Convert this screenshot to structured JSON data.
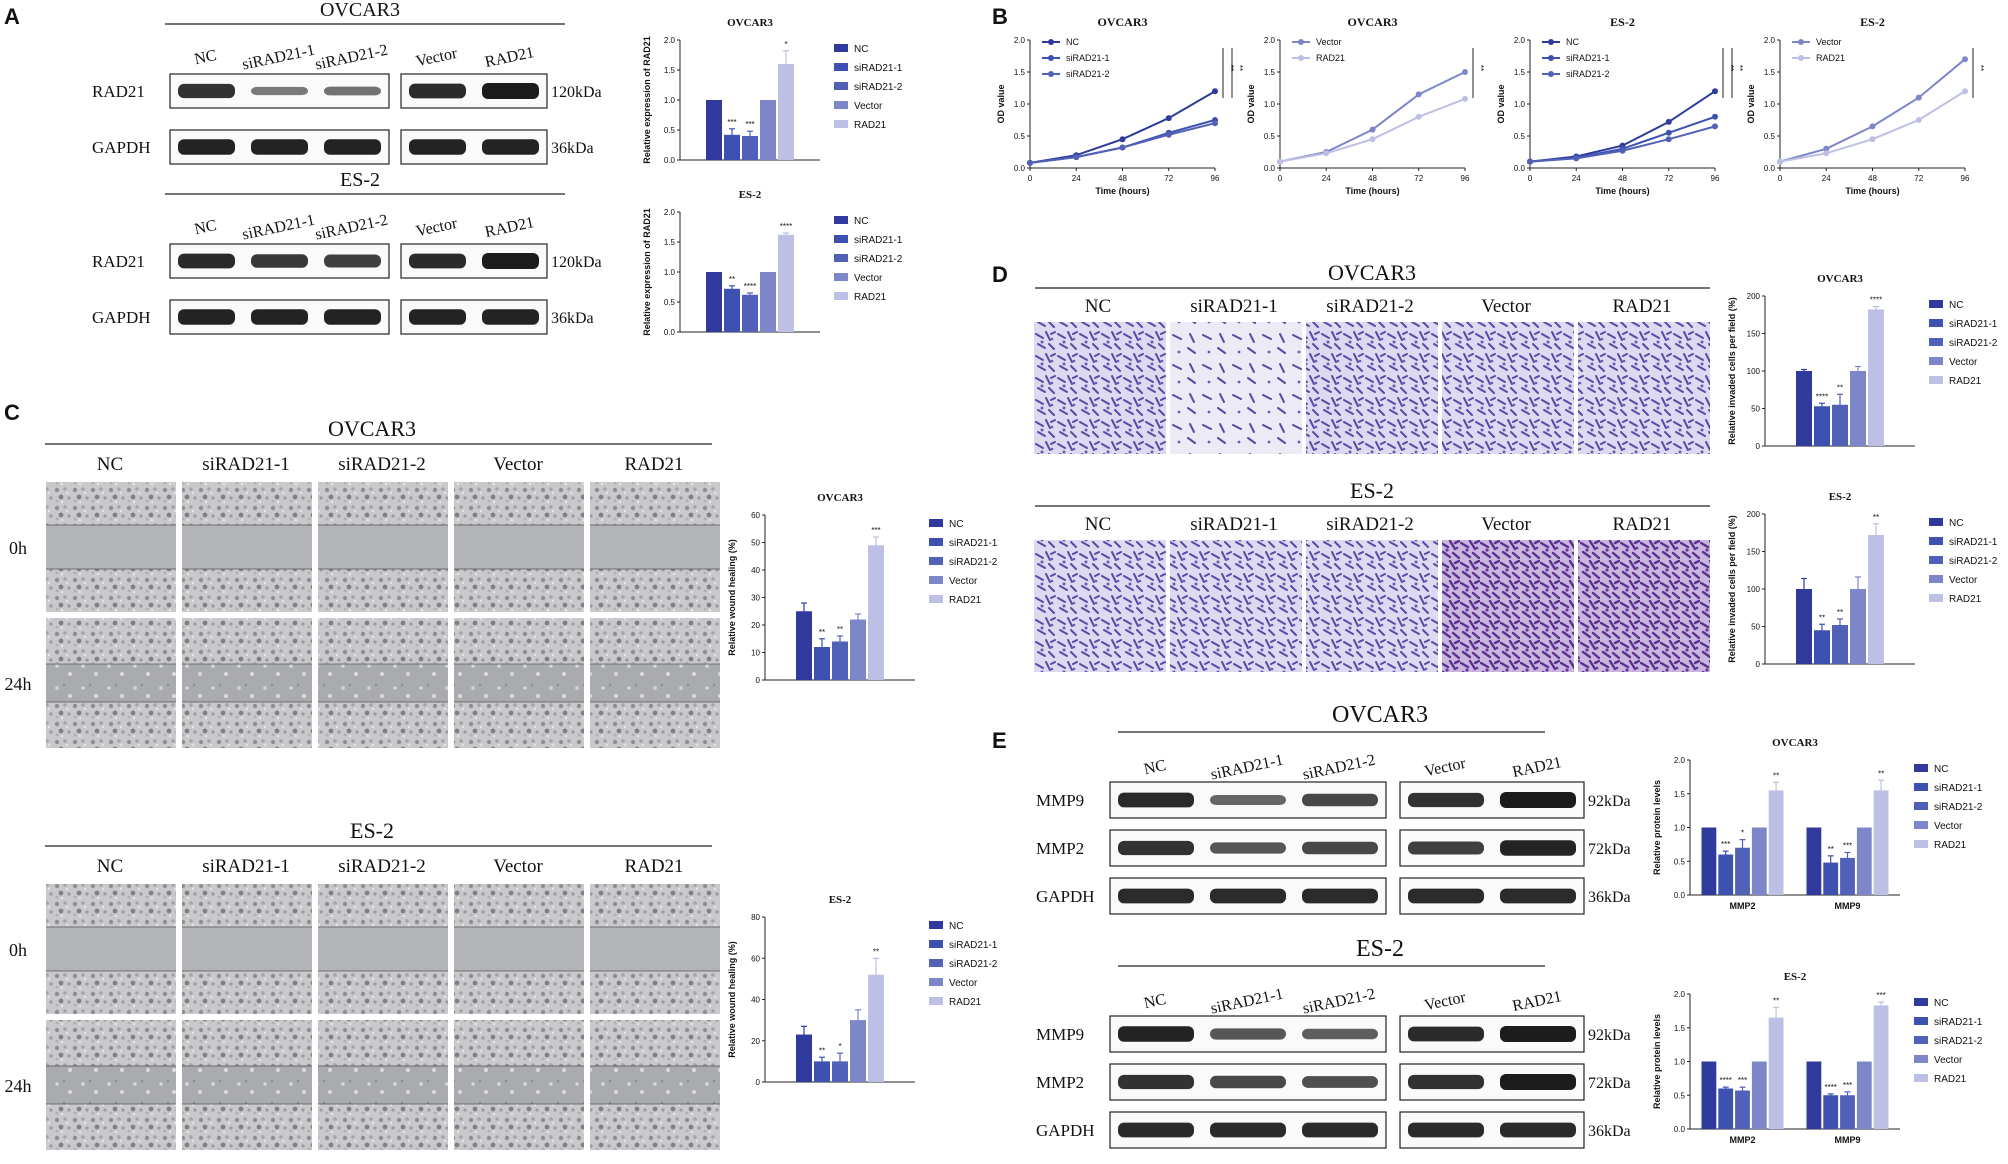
{
  "colors": {
    "c1": "#2f3a9c",
    "c2": "#3d52b0",
    "c3": "#5261b8",
    "c4": "#7d86c9",
    "c5": "#bdbfe4",
    "band": "#1c1c1c"
  },
  "panelA": {
    "letter": "A",
    "blots": [
      {
        "cell": "OVCAR3",
        "lanes": [
          "NC",
          "siRAD21-1",
          "siRAD21-2",
          "Vector",
          "RAD21"
        ],
        "rows": [
          {
            "label": "RAD21",
            "kda": "120kDa",
            "int": [
              0.85,
              0.35,
              0.4,
              0.9,
              1.0
            ]
          },
          {
            "label": "GAPDH",
            "kda": "36kDa",
            "int": [
              0.95,
              0.95,
              0.95,
              0.95,
              0.95
            ]
          }
        ]
      },
      {
        "cell": "ES-2",
        "lanes": [
          "NC",
          "siRAD21-1",
          "siRAD21-2",
          "Vector",
          "RAD21"
        ],
        "rows": [
          {
            "label": "RAD21",
            "kda": "120kDa",
            "int": [
              0.9,
              0.8,
              0.75,
              0.9,
              1.0
            ]
          },
          {
            "label": "GAPDH",
            "kda": "36kDa",
            "int": [
              0.95,
              0.95,
              0.95,
              0.95,
              0.95
            ]
          }
        ]
      }
    ],
    "charts": [
      {
        "title": "OVCAR3",
        "ylabel": "Relative expression of RAD21",
        "ymax": 2.0,
        "ticks": [
          0.0,
          0.5,
          1.0,
          1.5,
          2.0
        ],
        "values": [
          1.0,
          0.42,
          0.4,
          1.0,
          1.6
        ],
        "errors": [
          0,
          0.1,
          0.08,
          0,
          0.22
        ],
        "sig": [
          "",
          "***",
          "***",
          "",
          "*"
        ],
        "legend": [
          "NC",
          "siRAD21-1",
          "siRAD21-2",
          "Vector",
          "RAD21"
        ]
      },
      {
        "title": "ES-2",
        "ylabel": "Relative expression of RAD21",
        "ymax": 2.0,
        "ticks": [
          0.0,
          0.5,
          1.0,
          1.5,
          2.0
        ],
        "values": [
          1.0,
          0.72,
          0.62,
          1.0,
          1.62
        ],
        "errors": [
          0,
          0.05,
          0.03,
          0,
          0.03
        ],
        "sig": [
          "",
          "**",
          "****",
          "",
          "****"
        ],
        "legend": [
          "NC",
          "siRAD21-1",
          "siRAD21-2",
          "Vector",
          "RAD21"
        ]
      }
    ]
  },
  "panelB": {
    "letter": "B",
    "xlabel": "Time (hours)",
    "ylabel": "OD value",
    "x": [
      0,
      24,
      48,
      72,
      96
    ],
    "yticks": [
      0.0,
      0.5,
      1.0,
      1.5,
      2.0
    ],
    "charts": [
      {
        "title": "OVCAR3",
        "sig": [
          "**",
          "**"
        ],
        "series": [
          {
            "name": "NC",
            "y": [
              0.08,
              0.2,
              0.45,
              0.78,
              1.2
            ],
            "ci": 0
          },
          {
            "name": "siRAD21-1",
            "y": [
              0.08,
              0.17,
              0.32,
              0.55,
              0.75
            ],
            "ci": 1
          },
          {
            "name": "siRAD21-2",
            "y": [
              0.08,
              0.17,
              0.32,
              0.52,
              0.7
            ],
            "ci": 2
          }
        ]
      },
      {
        "title": "OVCAR3",
        "sig": [
          "**"
        ],
        "series": [
          {
            "name": "Vector",
            "y": [
              0.1,
              0.25,
              0.6,
              1.15,
              1.5
            ],
            "ci": 3
          },
          {
            "name": "RAD21",
            "y": [
              0.1,
              0.23,
              0.45,
              0.8,
              1.08
            ],
            "ci": 4
          }
        ]
      },
      {
        "title": "ES-2",
        "sig": [
          "**",
          "**"
        ],
        "series": [
          {
            "name": "NC",
            "y": [
              0.1,
              0.18,
              0.35,
              0.72,
              1.2
            ],
            "ci": 0
          },
          {
            "name": "siRAD21-1",
            "y": [
              0.1,
              0.16,
              0.3,
              0.55,
              0.8
            ],
            "ci": 1
          },
          {
            "name": "siRAD21-2",
            "y": [
              0.1,
              0.15,
              0.27,
              0.45,
              0.65
            ],
            "ci": 2
          }
        ]
      },
      {
        "title": "ES-2",
        "sig": [
          "**"
        ],
        "series": [
          {
            "name": "Vector",
            "y": [
              0.1,
              0.3,
              0.65,
              1.1,
              1.7
            ],
            "ci": 3
          },
          {
            "name": "RAD21",
            "y": [
              0.1,
              0.23,
              0.45,
              0.75,
              1.2
            ],
            "ci": 4
          }
        ]
      }
    ]
  },
  "panelC": {
    "letter": "C",
    "lanes": [
      "NC",
      "siRAD21-1",
      "siRAD21-2",
      "Vector",
      "RAD21"
    ],
    "times": [
      "0h",
      "24h"
    ],
    "groups": [
      {
        "cell": "OVCAR3",
        "chart": {
          "title": "OVCAR3",
          "ylabel": "Relative wound healing (%)",
          "ymax": 60,
          "ticks": [
            0,
            10,
            20,
            30,
            40,
            50,
            60
          ],
          "values": [
            25,
            12,
            14,
            22,
            49
          ],
          "errors": [
            3,
            3,
            2,
            2,
            3
          ],
          "sig": [
            "",
            "**",
            "**",
            "",
            "***"
          ],
          "legend": [
            "NC",
            "siRAD21-1",
            "siRAD21-2",
            "Vector",
            "RAD21"
          ]
        }
      },
      {
        "cell": "ES-2",
        "chart": {
          "title": "ES-2",
          "ylabel": "Relative wound healing (%)",
          "ymax": 80,
          "ticks": [
            0,
            20,
            40,
            60,
            80
          ],
          "values": [
            23,
            10,
            10,
            30,
            52
          ],
          "errors": [
            4,
            2,
            4,
            5,
            8
          ],
          "sig": [
            "",
            "**",
            "*",
            "",
            "**"
          ],
          "legend": [
            "NC",
            "siRAD21-1",
            "siRAD21-2",
            "Vector",
            "RAD21"
          ]
        }
      }
    ]
  },
  "panelD": {
    "letter": "D",
    "lanes": [
      "NC",
      "siRAD21-1",
      "siRAD21-2",
      "Vector",
      "RAD21"
    ],
    "groups": [
      {
        "cell": "OVCAR3",
        "chart": {
          "title": "OVCAR3",
          "ylabel": "Relative invaded cells per field (%)",
          "ymax": 200,
          "ticks": [
            0,
            50,
            100,
            150,
            200
          ],
          "values": [
            100,
            53,
            55,
            100,
            182
          ],
          "errors": [
            2,
            4,
            14,
            6,
            4
          ],
          "sig": [
            "",
            "****",
            "**",
            "",
            "****"
          ],
          "legend": [
            "NC",
            "siRAD21-1",
            "siRAD21-2",
            "Vector",
            "RAD21"
          ]
        }
      },
      {
        "cell": "ES-2",
        "chart": {
          "title": "ES-2",
          "ylabel": "Relative invaded cells per field (%)",
          "ymax": 200,
          "ticks": [
            0,
            50,
            100,
            150,
            200
          ],
          "values": [
            100,
            45,
            52,
            100,
            172
          ],
          "errors": [
            14,
            8,
            8,
            16,
            15
          ],
          "sig": [
            "",
            "**",
            "**",
            "",
            "**"
          ],
          "legend": [
            "NC",
            "siRAD21-1",
            "siRAD21-2",
            "Vector",
            "RAD21"
          ]
        }
      }
    ]
  },
  "panelE": {
    "letter": "E",
    "blots": [
      {
        "cell": "OVCAR3",
        "lanes": [
          "NC",
          "siRAD21-1",
          "siRAD21-2",
          "Vector",
          "RAD21"
        ],
        "rows": [
          {
            "label": "MMP9",
            "kda": "92kDa",
            "int": [
              0.9,
              0.5,
              0.7,
              0.85,
              1.0
            ]
          },
          {
            "label": "MMP2",
            "kda": "72kDa",
            "int": [
              0.85,
              0.6,
              0.7,
              0.75,
              0.95
            ]
          },
          {
            "label": "GAPDH",
            "kda": "36kDa",
            "int": [
              0.9,
              0.9,
              0.9,
              0.9,
              0.9
            ]
          }
        ]
      },
      {
        "cell": "ES-2",
        "lanes": [
          "NC",
          "siRAD21-1",
          "siRAD21-2",
          "Vector",
          "RAD21"
        ],
        "rows": [
          {
            "label": "MMP9",
            "kda": "92kDa",
            "int": [
              0.95,
              0.6,
              0.55,
              0.9,
              1.0
            ]
          },
          {
            "label": "MMP2",
            "kda": "72kDa",
            "int": [
              0.85,
              0.7,
              0.65,
              0.85,
              1.0
            ]
          },
          {
            "label": "GAPDH",
            "kda": "36kDa",
            "int": [
              0.9,
              0.9,
              0.9,
              0.9,
              0.9
            ]
          }
        ]
      }
    ],
    "charts": [
      {
        "title": "OVCAR3",
        "ylabel": "Relative protein levels",
        "ymax": 2.0,
        "ticks": [
          0.0,
          0.5,
          1.0,
          1.5,
          2.0
        ],
        "categories": [
          "MMP2",
          "MMP9"
        ],
        "values": [
          [
            1.0,
            0.6,
            0.7,
            1.0,
            1.55
          ],
          [
            1.0,
            0.48,
            0.55,
            1.0,
            1.55
          ]
        ],
        "errors": [
          [
            0,
            0.05,
            0.12,
            0,
            0.12
          ],
          [
            0,
            0.1,
            0.08,
            0,
            0.15
          ]
        ],
        "sig": [
          [
            "",
            "***",
            "*",
            "",
            "**"
          ],
          [
            "",
            "**",
            "***",
            "",
            "**"
          ]
        ],
        "legend": [
          "NC",
          "siRAD21-1",
          "siRAD21-2",
          "Vector",
          "RAD21"
        ]
      },
      {
        "title": "ES-2",
        "ylabel": "Relative protein levels",
        "ymax": 2.0,
        "ticks": [
          0.0,
          0.5,
          1.0,
          1.5,
          2.0
        ],
        "categories": [
          "MMP2",
          "MMP9"
        ],
        "values": [
          [
            1.0,
            0.6,
            0.57,
            1.0,
            1.65
          ],
          [
            1.0,
            0.5,
            0.5,
            1.0,
            1.83
          ]
        ],
        "errors": [
          [
            0,
            0.02,
            0.05,
            0,
            0.15
          ],
          [
            0,
            0.02,
            0.05,
            0,
            0.05
          ]
        ],
        "sig": [
          [
            "",
            "****",
            "***",
            "",
            "**"
          ],
          [
            "",
            "****",
            "***",
            "",
            "***"
          ]
        ],
        "legend": [
          "NC",
          "siRAD21-1",
          "siRAD21-2",
          "Vector",
          "RAD21"
        ]
      }
    ]
  }
}
